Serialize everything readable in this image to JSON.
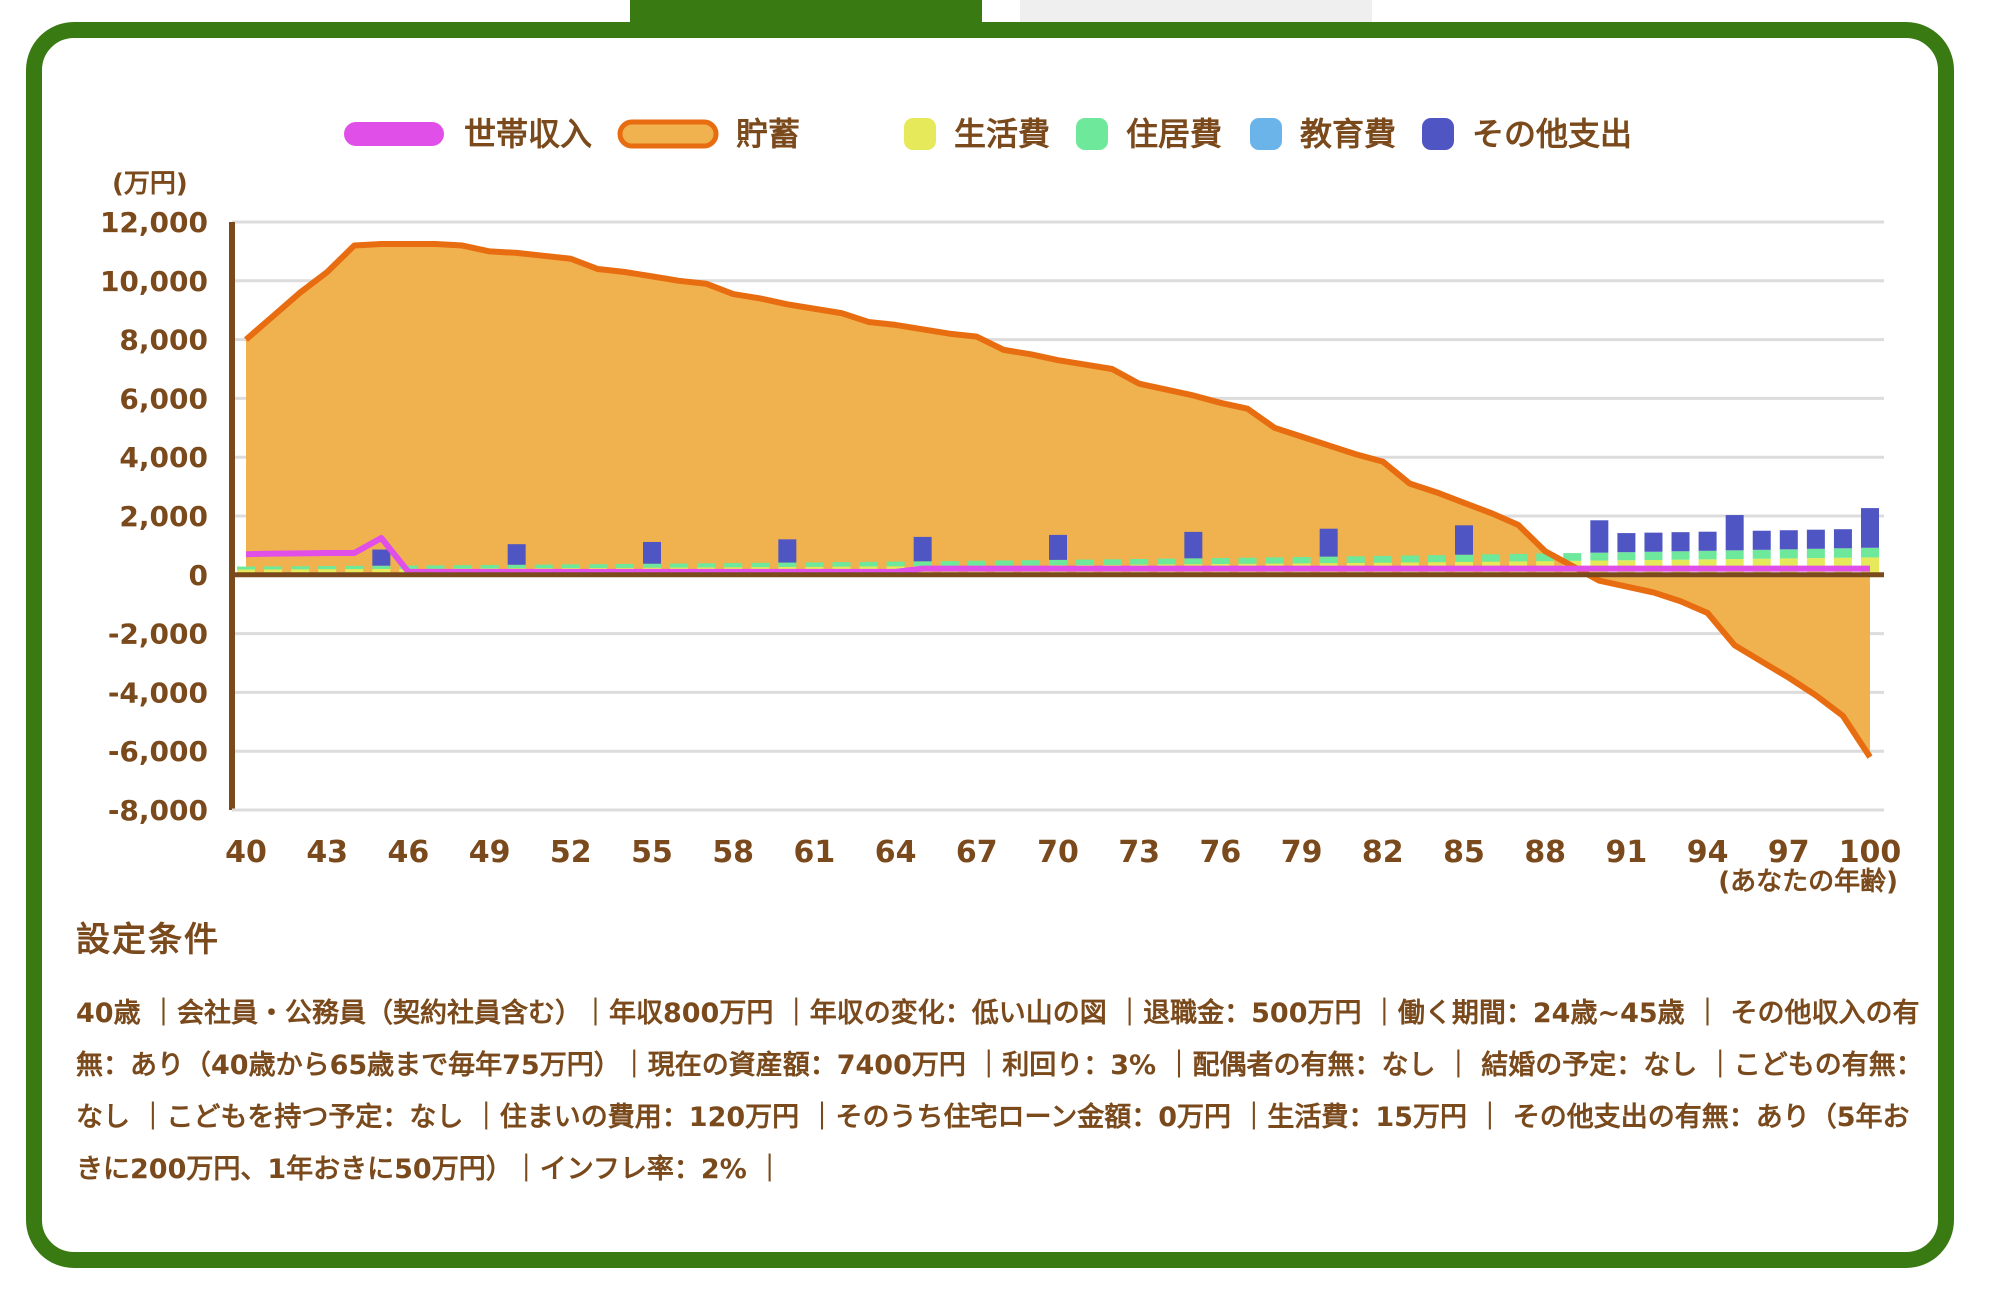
{
  "tabs": {
    "active_color": "#3a7a13",
    "inactive_color": "#efefef"
  },
  "chart_data": {
    "type": "area",
    "y_unit": "(万円)",
    "x_unit": "(あなたの年齢)",
    "ylim": [
      -8000,
      12000
    ],
    "y_ticks": [
      12000,
      10000,
      8000,
      6000,
      4000,
      2000,
      0,
      -2000,
      -4000,
      -6000,
      -8000
    ],
    "y_tick_labels": [
      "12,000",
      "10,000",
      "8,000",
      "6,000",
      "4,000",
      "2,000",
      "0",
      "-2,000",
      "-4,000",
      "-6,000",
      "-8,000"
    ],
    "x_tick_labels": [
      "40",
      "43",
      "46",
      "49",
      "52",
      "55",
      "58",
      "61",
      "64",
      "67",
      "70",
      "73",
      "76",
      "79",
      "82",
      "85",
      "88",
      "91",
      "94",
      "97",
      "100"
    ],
    "grid": true,
    "legend": [
      {
        "label": "世帯収入",
        "color": "#e050e8",
        "kind": "line"
      },
      {
        "label": "貯蓄",
        "color": "#e86c10",
        "kind": "area"
      },
      {
        "label": "生活費",
        "color": "#e6ea5a",
        "kind": "bar"
      },
      {
        "label": "住居費",
        "color": "#6ee89a",
        "kind": "bar"
      },
      {
        "label": "教育費",
        "color": "#6ab4ea",
        "kind": "bar"
      },
      {
        "label": "その他支出",
        "color": "#5055c4",
        "kind": "bar"
      }
    ],
    "x": [
      40,
      41,
      42,
      43,
      44,
      45,
      46,
      47,
      48,
      49,
      50,
      51,
      52,
      53,
      54,
      55,
      56,
      57,
      58,
      59,
      60,
      61,
      62,
      63,
      64,
      65,
      66,
      67,
      68,
      69,
      70,
      71,
      72,
      73,
      74,
      75,
      76,
      77,
      78,
      79,
      80,
      81,
      82,
      83,
      84,
      85,
      86,
      87,
      88,
      89,
      90,
      91,
      92,
      93,
      94,
      95,
      96,
      97,
      98,
      99,
      100
    ],
    "series": [
      {
        "name": "貯蓄",
        "values": [
          8000,
          8800,
          9600,
          10300,
          11200,
          11250,
          11250,
          11250,
          11200,
          11000,
          10950,
          10850,
          10750,
          10400,
          10300,
          10150,
          10000,
          9900,
          9550,
          9400,
          9200,
          9050,
          8900,
          8600,
          8500,
          8350,
          8200,
          8100,
          7650,
          7500,
          7300,
          7150,
          7000,
          6500,
          6300,
          6100,
          5850,
          5650,
          5000,
          4700,
          4400,
          4100,
          3850,
          3100,
          2800,
          2450,
          2100,
          1700,
          800,
          300,
          -200,
          -400,
          -600,
          -900,
          -1300,
          -2400,
          -2950,
          -3500,
          -4100,
          -4800,
          -6200
        ]
      },
      {
        "name": "世帯収入",
        "values": [
          700,
          720,
          730,
          740,
          740,
          1250,
          100,
          100,
          100,
          100,
          100,
          100,
          100,
          100,
          100,
          100,
          100,
          100,
          100,
          100,
          100,
          100,
          100,
          100,
          100,
          210,
          210,
          210,
          210,
          210,
          210,
          210,
          210,
          210,
          210,
          210,
          210,
          210,
          210,
          210,
          210,
          210,
          210,
          210,
          210,
          210,
          210,
          210,
          210,
          210,
          210,
          210,
          210,
          210,
          210,
          210,
          210,
          210,
          210,
          210,
          210
        ]
      },
      {
        "name": "その他支出",
        "values": [
          0,
          0,
          0,
          0,
          0,
          550,
          0,
          0,
          0,
          0,
          700,
          0,
          0,
          0,
          0,
          740,
          0,
          0,
          0,
          0,
          790,
          0,
          0,
          0,
          0,
          830,
          0,
          0,
          0,
          0,
          850,
          0,
          0,
          0,
          0,
          900,
          0,
          0,
          0,
          0,
          950,
          0,
          0,
          0,
          0,
          1000,
          0,
          0,
          0,
          0,
          1100,
          650,
          650,
          650,
          650,
          1200,
          650,
          650,
          650,
          650,
          1350
        ]
      },
      {
        "name": "生活費",
        "values": [
          180,
          184,
          187,
          191,
          195,
          199,
          202,
          206,
          211,
          215,
          219,
          223,
          228,
          232,
          237,
          242,
          247,
          252,
          257,
          262,
          267,
          272,
          278,
          283,
          289,
          295,
          301,
          307,
          313,
          319,
          326,
          332,
          339,
          346,
          353,
          360,
          367,
          374,
          382,
          390,
          397,
          405,
          413,
          422,
          430,
          439,
          448,
          457,
          466,
          475,
          485,
          494,
          504,
          514,
          525,
          535,
          546,
          557,
          568,
          579,
          591
        ]
      },
      {
        "name": "住居費",
        "values": [
          100,
          102,
          104,
          106,
          108,
          110,
          113,
          115,
          117,
          119,
          122,
          124,
          127,
          129,
          132,
          135,
          137,
          140,
          143,
          146,
          149,
          152,
          155,
          158,
          161,
          164,
          167,
          171,
          174,
          178,
          181,
          185,
          188,
          192,
          196,
          200,
          204,
          208,
          212,
          216,
          221,
          225,
          230,
          234,
          239,
          244,
          249,
          254,
          259,
          264,
          269,
          275,
          280,
          286,
          291,
          297,
          303,
          309,
          316,
          322,
          328
        ]
      }
    ]
  },
  "conditions": {
    "title": "設定条件",
    "text": "40歳 ｜会社員・公務員（契約社員含む）｜年収800万円 ｜年収の変化：低い山の図 ｜退職金：500万円 ｜働く期間：24歳~45歳 ｜ その他収入の有無：あり（40歳から65歳まで毎年75万円）｜現在の資産額：7400万円 ｜利回り：3% ｜配偶者の有無：なし ｜ 結婚の予定：なし ｜こどもの有無：なし ｜こどもを持つ予定：なし ｜住まいの費用：120万円 ｜そのうち住宅ローン金額：0万円 ｜生活費：15万円 ｜ その他支出の有無：あり（5年おきに200万円、1年おきに50万円）｜インフレ率：2% ｜"
  }
}
